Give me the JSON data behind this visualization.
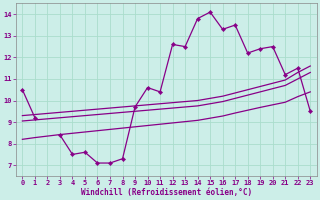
{
  "xlabel": "Windchill (Refroidissement éolien,°C)",
  "background_color": "#cceee8",
  "grid_color": "#aaddcc",
  "line_color": "#880088",
  "x_data": [
    0,
    1,
    2,
    3,
    4,
    5,
    6,
    7,
    8,
    9,
    10,
    11,
    12,
    13,
    14,
    15,
    16,
    17,
    18,
    19,
    20,
    21,
    22,
    23
  ],
  "y_main": [
    10.5,
    9.2,
    null,
    8.4,
    7.5,
    7.6,
    7.1,
    7.1,
    7.3,
    9.7,
    10.6,
    10.4,
    12.6,
    12.5,
    13.8,
    14.1,
    13.3,
    13.5,
    12.2,
    12.4,
    12.5,
    11.2,
    11.5,
    9.5
  ],
  "y_line1": [
    9.3,
    9.35,
    9.4,
    9.45,
    9.5,
    9.55,
    9.6,
    9.65,
    9.7,
    9.75,
    9.8,
    9.85,
    9.9,
    9.95,
    10.0,
    10.1,
    10.2,
    10.35,
    10.5,
    10.65,
    10.8,
    10.95,
    11.3,
    11.6
  ],
  "y_line2": [
    9.05,
    9.1,
    9.15,
    9.2,
    9.25,
    9.3,
    9.35,
    9.4,
    9.45,
    9.5,
    9.55,
    9.6,
    9.65,
    9.7,
    9.75,
    9.85,
    9.95,
    10.1,
    10.25,
    10.4,
    10.55,
    10.7,
    11.0,
    11.3
  ],
  "y_line3": [
    8.2,
    8.28,
    8.35,
    8.42,
    8.48,
    8.54,
    8.6,
    8.66,
    8.72,
    8.78,
    8.84,
    8.9,
    8.96,
    9.02,
    9.08,
    9.18,
    9.28,
    9.42,
    9.55,
    9.68,
    9.8,
    9.92,
    10.18,
    10.4
  ],
  "ylim": [
    6.5,
    14.5
  ],
  "yticks": [
    7,
    8,
    9,
    10,
    11,
    12,
    13,
    14
  ],
  "xlim": [
    -0.5,
    23.5
  ],
  "xticks": [
    0,
    1,
    2,
    3,
    4,
    5,
    6,
    7,
    8,
    9,
    10,
    11,
    12,
    13,
    14,
    15,
    16,
    17,
    18,
    19,
    20,
    21,
    22,
    23
  ],
  "font_color": "#880088",
  "tick_fontsize": 5.0,
  "xlabel_fontsize": 5.5,
  "line_width": 0.9,
  "marker_size": 2.2
}
